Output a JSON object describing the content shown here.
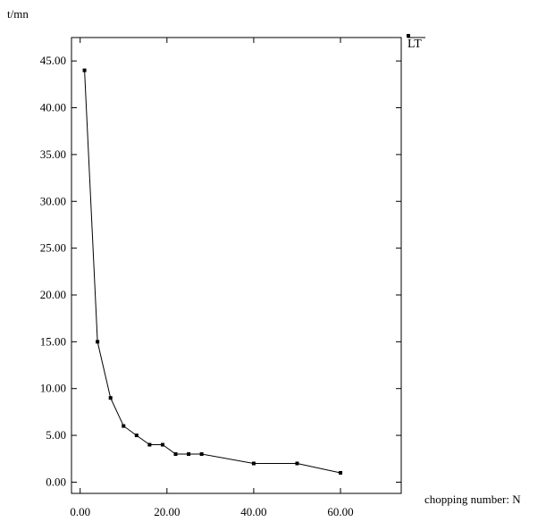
{
  "chart_data": {
    "type": "line",
    "ylabel": "t/mn",
    "xlabel": "chopping number: N",
    "xlim": [
      -2,
      74
    ],
    "ylim": [
      -1.2,
      47.5
    ],
    "xticks": [
      0,
      20,
      40,
      60
    ],
    "xtick_labels": [
      "0.00",
      "20.00",
      "40.00",
      "60.00"
    ],
    "yticks": [
      0,
      5,
      10,
      15,
      20,
      25,
      30,
      35,
      40,
      45
    ],
    "ytick_labels": [
      "0.00",
      "5.00",
      "10.00",
      "15.00",
      "20.00",
      "25.00",
      "30.00",
      "35.00",
      "40.00",
      "45.00"
    ],
    "legend_position": "top-right",
    "grid": false,
    "line_color": "#000000",
    "series": [
      {
        "name": "LT",
        "x": [
          1,
          4,
          7,
          10,
          13,
          16,
          19,
          22,
          25,
          28,
          40,
          50,
          60
        ],
        "y": [
          44,
          15,
          9,
          6,
          5,
          4,
          4,
          3,
          3,
          3,
          2,
          2,
          1
        ]
      }
    ]
  }
}
